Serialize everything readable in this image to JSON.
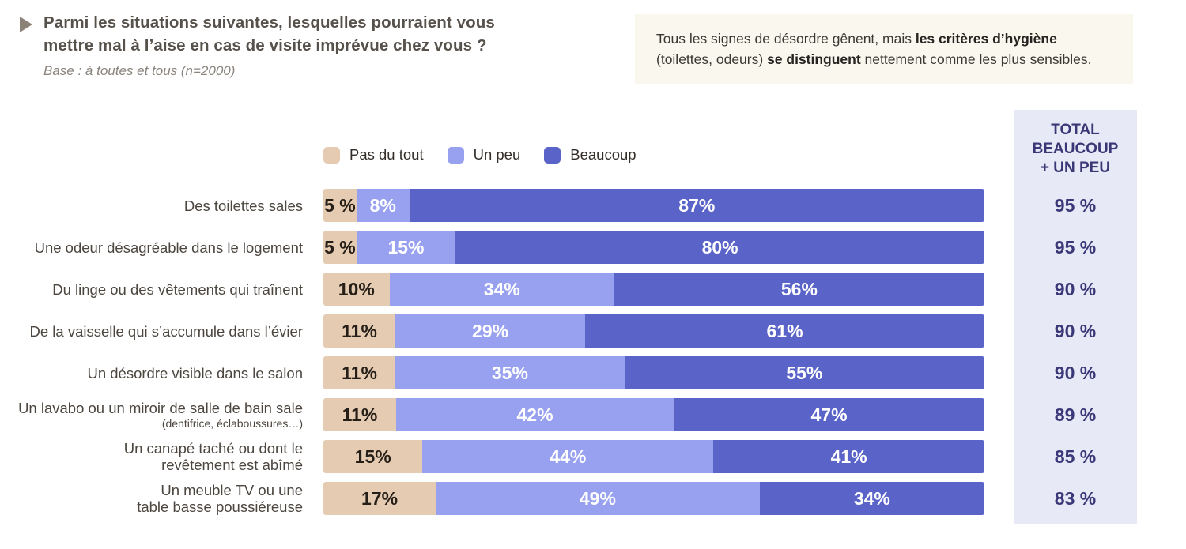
{
  "header": {
    "title_line1": "Parmi les situations suivantes, lesquelles pourraient vous",
    "title_line2": "mettre mal à l’aise en cas de visite imprévue chez vous ?",
    "base": "Base : à toutes et tous (n=2000)"
  },
  "callout": {
    "part1": "Tous les signes de désordre gênent, mais ",
    "bold1": "les critères d’hygiène",
    "part2": " (toilettes, odeurs) ",
    "bold2": "se distinguent",
    "part3": " nettement comme les plus sensibles."
  },
  "legend": {
    "items": [
      {
        "label": "Pas du tout",
        "color": "#e5cbb2"
      },
      {
        "label": "Un peu",
        "color": "#98a1f0"
      },
      {
        "label": "Beaucoup",
        "color": "#5a63c8"
      }
    ]
  },
  "totals": {
    "header": "TOTAL\nBEAUCOUP\n+ UN PEU",
    "values": [
      "95 %",
      "95 %",
      "90 %",
      "90 %",
      "90 %",
      "89 %",
      "85 %",
      "83 %"
    ]
  },
  "rows": [
    {
      "lines": [
        "Des toilettes sales"
      ],
      "sub": "",
      "segments": [
        {
          "value": 5,
          "label": "5 %"
        },
        {
          "value": 8,
          "label": "8%"
        },
        {
          "value": 87,
          "label": "87%"
        }
      ]
    },
    {
      "lines": [
        "Une odeur désagréable dans le logement"
      ],
      "sub": "",
      "segments": [
        {
          "value": 5,
          "label": "5 %"
        },
        {
          "value": 15,
          "label": "15%"
        },
        {
          "value": 80,
          "label": "80%"
        }
      ]
    },
    {
      "lines": [
        "Du linge ou des vêtements qui traînent"
      ],
      "sub": "",
      "segments": [
        {
          "value": 10,
          "label": "10%"
        },
        {
          "value": 34,
          "label": "34%"
        },
        {
          "value": 56,
          "label": "56%"
        }
      ]
    },
    {
      "lines": [
        "De la vaisselle qui s’accumule dans l’évier"
      ],
      "sub": "",
      "segments": [
        {
          "value": 11,
          "label": "11%"
        },
        {
          "value": 29,
          "label": "29%"
        },
        {
          "value": 61,
          "label": "61%"
        }
      ]
    },
    {
      "lines": [
        "Un désordre visible dans le salon"
      ],
      "sub": "",
      "segments": [
        {
          "value": 11,
          "label": "11%"
        },
        {
          "value": 35,
          "label": "35%"
        },
        {
          "value": 55,
          "label": "55%"
        }
      ]
    },
    {
      "lines": [
        "Un lavabo ou un miroir de salle de bain sale"
      ],
      "sub": "(dentifrice, éclaboussures…)",
      "segments": [
        {
          "value": 11,
          "label": "11%"
        },
        {
          "value": 42,
          "label": "42%"
        },
        {
          "value": 47,
          "label": "47%"
        }
      ]
    },
    {
      "lines": [
        "Un canapé taché ou dont le",
        "revêtement est abîmé"
      ],
      "sub": "",
      "segments": [
        {
          "value": 15,
          "label": "15%"
        },
        {
          "value": 44,
          "label": "44%"
        },
        {
          "value": 41,
          "label": "41%"
        }
      ]
    },
    {
      "lines": [
        "Un meuble TV ou une",
        "table basse poussiéreuse"
      ],
      "sub": "",
      "segments": [
        {
          "value": 17,
          "label": "17%"
        },
        {
          "value": 49,
          "label": "49%"
        },
        {
          "value": 34,
          "label": "34%"
        }
      ]
    }
  ],
  "chart_data": {
    "type": "bar",
    "stacked": true,
    "orientation": "horizontal",
    "title": "Parmi les situations suivantes, lesquelles pourraient vous mettre mal à l’aise en cas de visite imprévue chez vous ?",
    "subtitle": "Base : à toutes et tous (n=2000)",
    "categories": [
      "Des toilettes sales",
      "Une odeur désagréable dans le logement",
      "Du linge ou des vêtements qui traînent",
      "De la vaisselle qui s’accumule dans l’évier",
      "Un désordre visible dans le salon",
      "Un lavabo ou un miroir de salle de bain sale (dentifrice, éclaboussures…)",
      "Un canapé taché ou dont le revêtement est abîmé",
      "Un meuble TV ou une table basse poussiéreuse"
    ],
    "series": [
      {
        "name": "Pas du tout",
        "color": "#e5cbb2",
        "values": [
          5,
          5,
          10,
          11,
          11,
          11,
          15,
          17
        ]
      },
      {
        "name": "Un peu",
        "color": "#98a1f0",
        "values": [
          8,
          15,
          34,
          29,
          35,
          42,
          44,
          49
        ]
      },
      {
        "name": "Beaucoup",
        "color": "#5a63c8",
        "values": [
          87,
          80,
          56,
          61,
          55,
          47,
          41,
          34
        ]
      }
    ],
    "totals_beaucoup_plus_un_peu": [
      95,
      95,
      90,
      90,
      90,
      89,
      85,
      83
    ],
    "xlim": [
      0,
      100
    ],
    "grid": false,
    "legend_position": "top",
    "value_labels": "inside"
  },
  "colors": {
    "background": "#ffffff",
    "callout_bg": "#faf7ee",
    "panel_bg": "#e8e9f7",
    "panel_text": "#3a3878",
    "title_text": "#57514b",
    "bullet": "#8d8278"
  }
}
